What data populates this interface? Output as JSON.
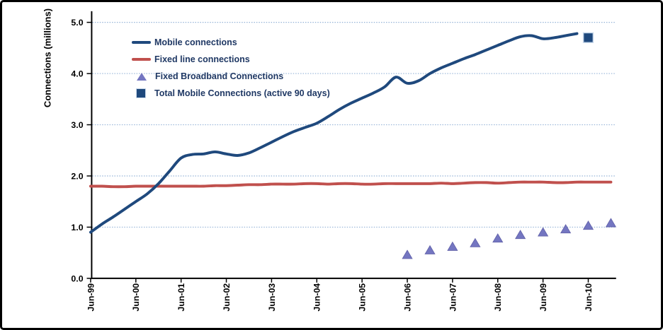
{
  "figure": {
    "background": "#ffffff",
    "border_color": "#000000"
  },
  "chart_data": {
    "type": "line",
    "title": "",
    "xlabel": "",
    "ylabel": "Connections (millions)",
    "ylim": [
      0.0,
      5.0
    ],
    "y_ticks": {
      "values": [
        0.0,
        1.0,
        2.0,
        3.0,
        4.0,
        5.0
      ],
      "labels": [
        "0.0",
        "1.0",
        "2.0",
        "3.0",
        "4.0",
        "5.0"
      ]
    },
    "x_ticks": [
      "Jun-99",
      "Jun-00",
      "Jun-01",
      "Jun-02",
      "Jun-03",
      "Jun-04",
      "Jun-05",
      "Jun-06",
      "Jun-07",
      "Jun-08",
      "Jun-09",
      "Jun-10"
    ],
    "grid": "horizontal dotted gridlines at 1.0 to 5.0",
    "legend_position": "upper-left inside plot",
    "colors": {
      "mobile_navy": "#1F497D",
      "fixed_red": "#C0504D",
      "broadband_purple": "#7476C1",
      "gridline_blue": "#95B3D7",
      "axis_black": "#000000",
      "legend_text_navy": "#1F3864"
    },
    "series": [
      {
        "name": "Mobile connections",
        "type": "line",
        "color": "#1F497D",
        "x": [
          "Jun-99",
          "Sep-99",
          "Dec-99",
          "Mar-00",
          "Jun-00",
          "Sep-00",
          "Dec-00",
          "Mar-01",
          "Jun-01",
          "Sep-01",
          "Dec-01",
          "Mar-02",
          "Jun-02",
          "Sep-02",
          "Dec-02",
          "Mar-03",
          "Jun-03",
          "Sep-03",
          "Dec-03",
          "Mar-04",
          "Jun-04",
          "Sep-04",
          "Dec-04",
          "Mar-05",
          "Jun-05",
          "Sep-05",
          "Dec-05",
          "Mar-06",
          "Jun-06",
          "Sep-06",
          "Dec-06",
          "Mar-07",
          "Jun-07",
          "Sep-07",
          "Dec-07",
          "Mar-08",
          "Jun-08",
          "Sep-08",
          "Dec-08",
          "Mar-09",
          "Jun-09",
          "Sep-09",
          "Dec-09",
          "Mar-10"
        ],
        "values": [
          0.9,
          1.06,
          1.2,
          1.35,
          1.5,
          1.65,
          1.85,
          2.1,
          2.35,
          2.42,
          2.43,
          2.47,
          2.43,
          2.4,
          2.45,
          2.55,
          2.66,
          2.77,
          2.87,
          2.95,
          3.03,
          3.16,
          3.3,
          3.42,
          3.52,
          3.62,
          3.74,
          3.93,
          3.81,
          3.86,
          4.0,
          4.11,
          4.2,
          4.29,
          4.37,
          4.46,
          4.55,
          4.64,
          4.72,
          4.74,
          4.68,
          4.7,
          4.74,
          4.78
        ]
      },
      {
        "name": "Fixed line connections",
        "type": "line",
        "color": "#C0504D",
        "x": [
          "Jun-99",
          "Sep-99",
          "Dec-99",
          "Mar-00",
          "Jun-00",
          "Sep-00",
          "Dec-00",
          "Mar-01",
          "Jun-01",
          "Sep-01",
          "Dec-01",
          "Mar-02",
          "Jun-02",
          "Sep-02",
          "Dec-02",
          "Mar-03",
          "Jun-03",
          "Sep-03",
          "Dec-03",
          "Mar-04",
          "Jun-04",
          "Sep-04",
          "Dec-04",
          "Mar-05",
          "Jun-05",
          "Sep-05",
          "Dec-05",
          "Mar-06",
          "Jun-06",
          "Sep-06",
          "Dec-06",
          "Mar-07",
          "Jun-07",
          "Sep-07",
          "Dec-07",
          "Mar-08",
          "Jun-08",
          "Sep-08",
          "Dec-08",
          "Mar-09",
          "Jun-09",
          "Sep-09",
          "Dec-09",
          "Mar-10",
          "Jun-10",
          "Sep-10",
          "Dec-10"
        ],
        "values": [
          1.8,
          1.8,
          1.79,
          1.79,
          1.8,
          1.8,
          1.8,
          1.8,
          1.8,
          1.8,
          1.8,
          1.81,
          1.81,
          1.82,
          1.83,
          1.83,
          1.84,
          1.84,
          1.84,
          1.85,
          1.85,
          1.84,
          1.85,
          1.85,
          1.84,
          1.84,
          1.85,
          1.85,
          1.85,
          1.85,
          1.85,
          1.86,
          1.85,
          1.86,
          1.87,
          1.87,
          1.86,
          1.87,
          1.88,
          1.88,
          1.88,
          1.87,
          1.87,
          1.88,
          1.88,
          1.88,
          1.88
        ]
      },
      {
        "name": "Fixed Broadband Connections",
        "type": "scatter",
        "marker": "triangle",
        "color": "#7476C1",
        "x": [
          "Jun-06",
          "Dec-06",
          "Jun-07",
          "Dec-07",
          "Jun-08",
          "Dec-08",
          "Jun-09",
          "Dec-09",
          "Jun-10",
          "Dec-10"
        ],
        "values": [
          0.46,
          0.55,
          0.62,
          0.69,
          0.78,
          0.85,
          0.9,
          0.96,
          1.03,
          1.08
        ]
      },
      {
        "name": "Total Mobile Connections (active 90 days)",
        "type": "scatter",
        "marker": "square",
        "color": "#1F497D",
        "x": [
          "Jun-10"
        ],
        "values": [
          4.7
        ]
      }
    ]
  }
}
